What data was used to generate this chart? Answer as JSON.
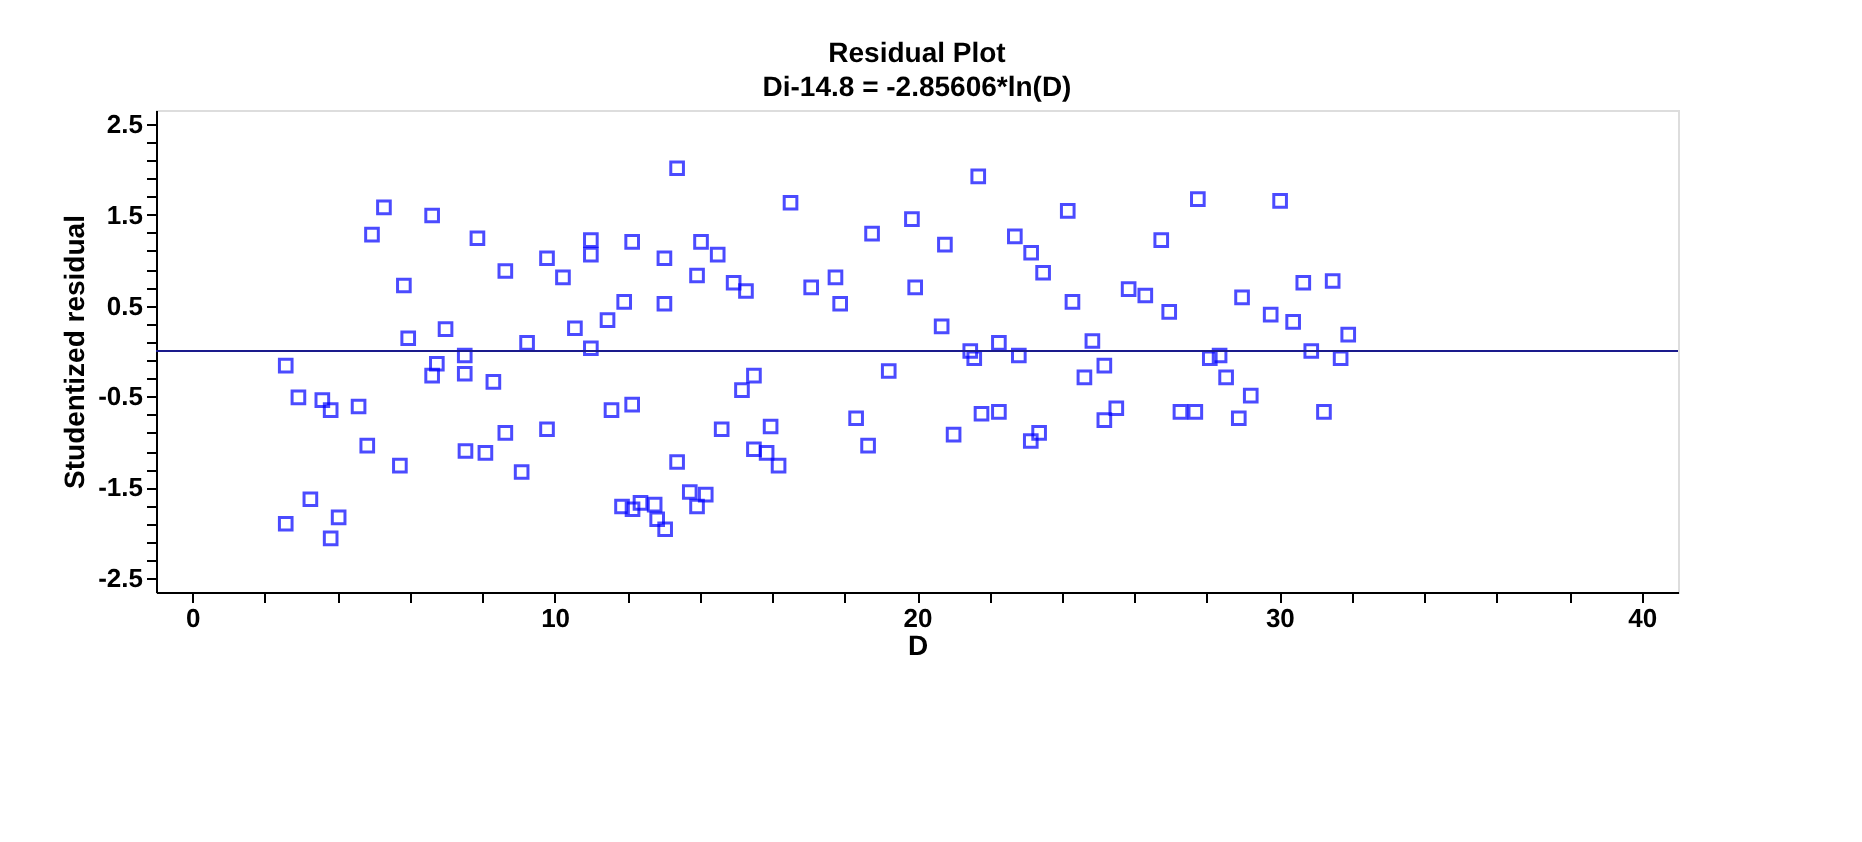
{
  "chart_data": {
    "type": "scatter",
    "title": "Residual Plot",
    "subtitle": "Di-14.8 = -2.85606*ln(D)",
    "xlabel": "D",
    "ylabel": "Studentized residual",
    "xlim": [
      -1,
      41
    ],
    "ylim": [
      -2.65,
      2.65
    ],
    "xticks": [
      0,
      {
        "value": 2,
        "label": null
      },
      {
        "value": 4,
        "label": null
      },
      {
        "value": 6,
        "label": null
      },
      {
        "value": 8,
        "label": null
      },
      10,
      {
        "value": 12,
        "label": null
      },
      {
        "value": 14,
        "label": null
      },
      {
        "value": 16,
        "label": null
      },
      {
        "value": 18,
        "label": null
      },
      20,
      {
        "value": 22,
        "label": null
      },
      {
        "value": 24,
        "label": null
      },
      {
        "value": 26,
        "label": null
      },
      {
        "value": 28,
        "label": null
      },
      30,
      {
        "value": 32,
        "label": null
      },
      {
        "value": 34,
        "label": null
      },
      {
        "value": 36,
        "label": null
      },
      {
        "value": 38,
        "label": null
      },
      40
    ],
    "yticks": [
      -2.5,
      {
        "value": -2.3,
        "label": null
      },
      {
        "value": -2.1,
        "label": null
      },
      {
        "value": -1.9,
        "label": null
      },
      {
        "value": -1.7,
        "label": null
      },
      -1.5,
      {
        "value": -1.3,
        "label": null
      },
      {
        "value": -1.1,
        "label": null
      },
      {
        "value": -0.9,
        "label": null
      },
      {
        "value": -0.7,
        "label": null
      },
      -0.5,
      {
        "value": -0.3,
        "label": null
      },
      {
        "value": -0.1,
        "label": null
      },
      {
        "value": 0.1,
        "label": null
      },
      {
        "value": 0.3,
        "label": null
      },
      0.5,
      {
        "value": 0.7,
        "label": null
      },
      {
        "value": 0.9,
        "label": null
      },
      {
        "value": 1.1,
        "label": null
      },
      {
        "value": 1.3,
        "label": null
      },
      1.5,
      {
        "value": 1.7,
        "label": null
      },
      {
        "value": 1.9,
        "label": null
      },
      {
        "value": 2.1,
        "label": null
      },
      {
        "value": 2.3,
        "label": null
      },
      2.5
    ],
    "grid": false,
    "marker": "square",
    "ref_lines": [
      {
        "axis": "y",
        "value": 0,
        "color": "#1a1a8c"
      }
    ],
    "series": [
      {
        "color": "#0000ff",
        "x": [
          5.29,
          6.62,
          4.96,
          7.87,
          8.64,
          5.84,
          6.99,
          5.96,
          9.24,
          7.52,
          2.58,
          6.75,
          6.62,
          7.52,
          8.31,
          2.93,
          3.59,
          3.82,
          4.59,
          8.64,
          4.83,
          7.54,
          8.09,
          5.73,
          9.09,
          3.26,
          2.58,
          4.04,
          3.82,
          13.38,
          16.51,
          19.86,
          18.76,
          11.0,
          12.14,
          14.04,
          11.0,
          9.79,
          13.03,
          14.5,
          10.23,
          13.93,
          17.75,
          14.94,
          15.28,
          17.08,
          19.95,
          11.92,
          13.03,
          17.88,
          11.46,
          10.56,
          11.0,
          15.5,
          19.22,
          15.17,
          11.57,
          12.14,
          18.32,
          9.79,
          14.61,
          15.96,
          18.65,
          15.5,
          15.85,
          16.18,
          13.38,
          13.73,
          14.17,
          11.86,
          12.15,
          12.37,
          12.76,
          13.93,
          12.83,
          13.05,
          21.69,
          27.75,
          30.02,
          24.16,
          20.77,
          22.7,
          23.15,
          26.74,
          23.48,
          25.84,
          26.3,
          24.29,
          28.97,
          26.96,
          29.76,
          30.38,
          20.68,
          22.26,
          24.84,
          21.47,
          21.58,
          22.81,
          25.17,
          24.62,
          28.08,
          28.35,
          28.53,
          29.21,
          21.78,
          22.26,
          25.5,
          25.17,
          27.27,
          27.68,
          28.88,
          21.01,
          23.37,
          23.14,
          30.66,
          31.47,
          31.9,
          30.88,
          31.69,
          31.23
        ],
        "values": [
          1.58,
          1.49,
          1.28,
          1.24,
          0.88,
          0.72,
          0.24,
          0.14,
          0.09,
          -0.05,
          -0.16,
          -0.14,
          -0.27,
          -0.25,
          -0.34,
          -0.51,
          -0.54,
          -0.65,
          -0.61,
          -0.9,
          -1.04,
          -1.1,
          -1.12,
          -1.26,
          -1.33,
          -1.63,
          -1.9,
          -1.83,
          -2.06,
          2.01,
          1.63,
          1.45,
          1.29,
          1.22,
          1.2,
          1.2,
          1.06,
          1.02,
          1.02,
          1.06,
          0.81,
          0.83,
          0.81,
          0.75,
          0.66,
          0.7,
          0.7,
          0.54,
          0.52,
          0.52,
          0.34,
          0.25,
          0.03,
          -0.27,
          -0.22,
          -0.43,
          -0.65,
          -0.59,
          -0.74,
          -0.86,
          -0.86,
          -0.83,
          -1.04,
          -1.08,
          -1.12,
          -1.26,
          -1.22,
          -1.55,
          -1.58,
          -1.71,
          -1.74,
          -1.67,
          -1.69,
          -1.71,
          -1.85,
          -1.96,
          1.92,
          1.67,
          1.65,
          1.54,
          1.17,
          1.26,
          1.08,
          1.22,
          0.86,
          0.68,
          0.61,
          0.54,
          0.59,
          0.43,
          0.4,
          0.32,
          0.27,
          0.09,
          0.11,
          0.0,
          -0.08,
          -0.05,
          -0.16,
          -0.29,
          -0.08,
          -0.05,
          -0.29,
          -0.49,
          -0.69,
          -0.67,
          -0.63,
          -0.76,
          -0.67,
          -0.67,
          -0.74,
          -0.92,
          -0.9,
          -0.99,
          0.75,
          0.77,
          0.18,
          0.0,
          -0.08,
          -0.67
        ]
      }
    ]
  }
}
